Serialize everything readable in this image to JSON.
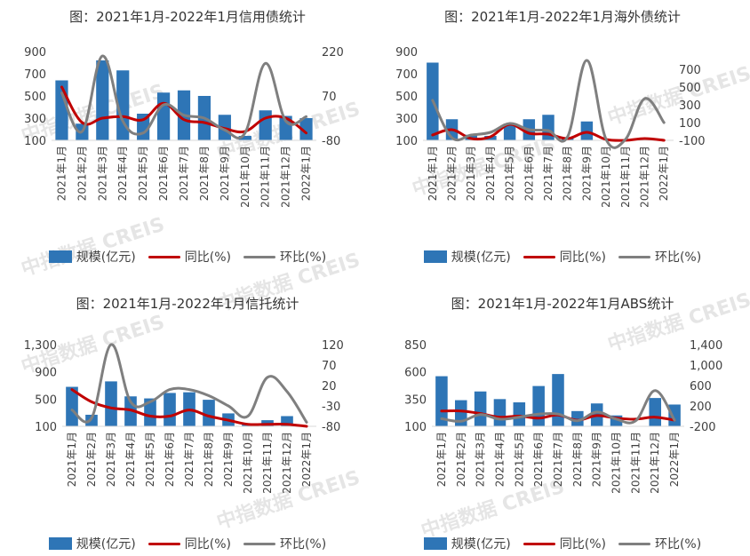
{
  "colors": {
    "bar": "#2E75B6",
    "yoy": "#C00000",
    "mom": "#7F7F7F"
  },
  "watermark": "中指数据 CREIS",
  "legend": {
    "bar": "规模(亿元)",
    "yoy": "同比(%)",
    "mom": "环比(%)"
  },
  "categories": [
    "2021年1月",
    "2021年2月",
    "2021年3月",
    "2021年4月",
    "2021年5月",
    "2021年6月",
    "2021年7月",
    "2021年8月",
    "2021年9月",
    "2021年10月",
    "2021年11月",
    "2021年12月",
    "2022年1月"
  ],
  "chart_data": [
    {
      "type": "bar",
      "title": "图：2021年1月-2022年1月信用债统计",
      "y_left": {
        "ticks": [
          "100",
          "300",
          "500",
          "700",
          "900"
        ],
        "min": 100,
        "max": 900
      },
      "y_right": {
        "ticks": [
          "-80",
          "70",
          "220"
        ],
        "min": -80,
        "max": 220
      },
      "series": [
        {
          "name": "规模(亿元)",
          "kind": "bar",
          "axis": "left",
          "values": [
            640,
            250,
            820,
            730,
            340,
            530,
            550,
            500,
            330,
            140,
            370,
            320,
            300
          ]
        },
        {
          "name": "同比(%)",
          "kind": "line",
          "axis": "right",
          "values": [
            100,
            -20,
            -5,
            0,
            -10,
            45,
            -10,
            -20,
            -40,
            -50,
            -5,
            -5,
            -55
          ]
        },
        {
          "name": "环比(%)",
          "kind": "line",
          "axis": "right",
          "values": [
            80,
            -50,
            205,
            -15,
            -55,
            40,
            5,
            -5,
            -45,
            -55,
            180,
            -15,
            0
          ]
        }
      ]
    },
    {
      "type": "bar",
      "title": "图：2021年1月-2022年1月海外债统计",
      "y_left": {
        "ticks": [
          "100",
          "300",
          "500",
          "700",
          "900"
        ],
        "min": 100,
        "max": 900
      },
      "y_right": {
        "ticks": [
          "-100",
          "100",
          "300",
          "500",
          "700"
        ],
        "min": -100,
        "max": 900
      },
      "series": [
        {
          "name": "规模(亿元)",
          "kind": "bar",
          "axis": "left",
          "values": [
            800,
            290,
            150,
            140,
            250,
            290,
            330,
            120,
            270,
            20,
            20,
            10,
            10
          ]
        },
        {
          "name": "同比(%)",
          "kind": "line",
          "axis": "right",
          "values": [
            -40,
            20,
            -80,
            -60,
            80,
            -20,
            -30,
            -80,
            -10,
            -90,
            -100,
            -80,
            -100
          ]
        },
        {
          "name": "环比(%)",
          "kind": "line",
          "axis": "right",
          "values": [
            350,
            -70,
            -40,
            -10,
            90,
            20,
            10,
            -60,
            800,
            -90,
            -90,
            370,
            100
          ]
        }
      ]
    },
    {
      "type": "bar",
      "title": "图：2021年1月-2022年1月信托统计",
      "y_left": {
        "ticks": [
          "100",
          "500",
          "900",
          "1,300"
        ],
        "min": 100,
        "max": 1300
      },
      "y_right": {
        "ticks": [
          "-80",
          "-30",
          "20",
          "70",
          "120"
        ],
        "min": -80,
        "max": 120
      },
      "series": [
        {
          "name": "规模(亿元)",
          "kind": "bar",
          "axis": "left",
          "values": [
            680,
            270,
            760,
            540,
            510,
            590,
            600,
            490,
            290,
            130,
            190,
            250,
            90
          ]
        },
        {
          "name": "同比(%)",
          "kind": "line",
          "axis": "right",
          "values": [
            10,
            -20,
            -35,
            -40,
            -55,
            -55,
            -40,
            -55,
            -65,
            -75,
            -75,
            -75,
            -80
          ]
        },
        {
          "name": "环比(%)",
          "kind": "line",
          "axis": "right",
          "values": [
            -40,
            -60,
            120,
            -20,
            -20,
            10,
            10,
            -5,
            -30,
            -55,
            40,
            5,
            -70
          ]
        }
      ]
    },
    {
      "type": "bar",
      "title": "图：2021年1月-2022年1月ABS统计",
      "y_left": {
        "ticks": [
          "100",
          "350",
          "600",
          "850"
        ],
        "min": 100,
        "max": 850
      },
      "y_right": {
        "ticks": [
          "-200",
          "200",
          "600",
          "1,000",
          "1,400"
        ],
        "min": -200,
        "max": 1400
      },
      "series": [
        {
          "name": "规模(亿元)",
          "kind": "bar",
          "axis": "left",
          "values": [
            560,
            340,
            420,
            350,
            320,
            470,
            580,
            240,
            310,
            200,
            90,
            360,
            300
          ]
        },
        {
          "name": "同比(%)",
          "kind": "line",
          "axis": "right",
          "values": [
            100,
            100,
            50,
            -20,
            0,
            -40,
            20,
            -80,
            10,
            -40,
            -60,
            -20,
            -80
          ]
        },
        {
          "name": "环比(%)",
          "kind": "line",
          "axis": "right",
          "values": [
            -50,
            -100,
            30,
            -60,
            -20,
            40,
            40,
            -90,
            80,
            -60,
            -90,
            500,
            -80
          ]
        }
      ]
    }
  ]
}
